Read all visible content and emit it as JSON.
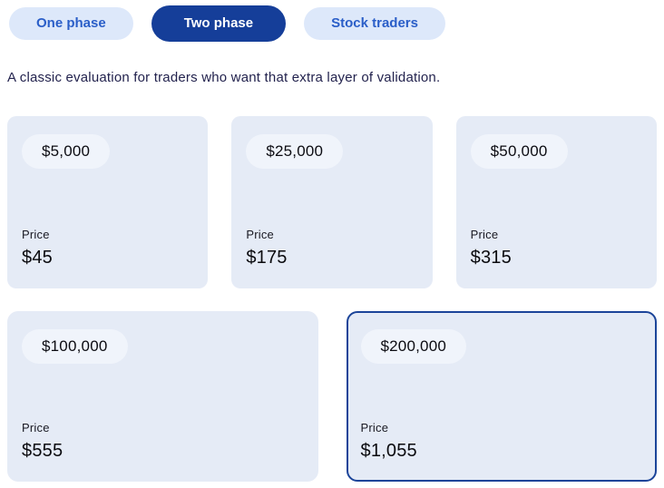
{
  "tabs": [
    {
      "label": "One phase",
      "selected": false
    },
    {
      "label": "Two phase",
      "selected": true
    },
    {
      "label": "Stock traders",
      "selected": false
    }
  ],
  "description": "A classic evaluation for traders who want that extra layer of validation.",
  "price_label": "Price",
  "plans": [
    {
      "balance": "$5,000",
      "price": "$45",
      "selected": false
    },
    {
      "balance": "$25,000",
      "price": "$175",
      "selected": false
    },
    {
      "balance": "$50,000",
      "price": "$315",
      "selected": false
    },
    {
      "balance": "$100,000",
      "price": "$555",
      "selected": false
    },
    {
      "balance": "$200,000",
      "price": "$1,055",
      "selected": true
    }
  ],
  "colors": {
    "selected_tab_bg": "#153e99",
    "tab_bg": "#dde8fa",
    "tab_text": "#2a5ec8",
    "card_bg": "#e5ebf6",
    "badge_bg": "#f0f4fb",
    "selected_card_border": "#1b4499",
    "description_text": "#23234e"
  }
}
